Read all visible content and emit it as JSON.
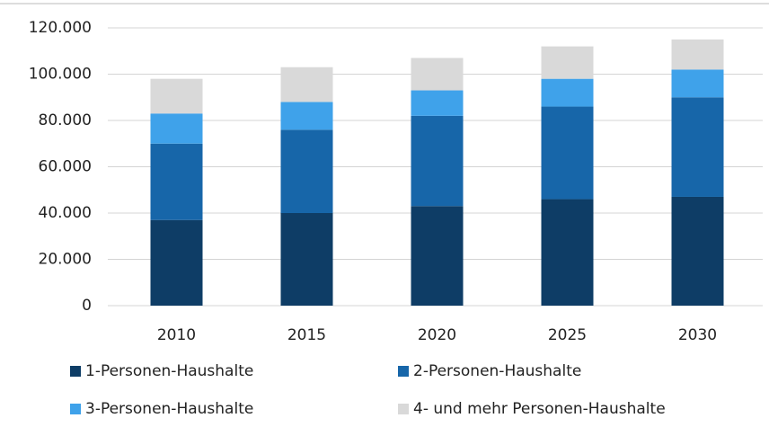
{
  "chart_data": {
    "type": "stacked_bar",
    "categories": [
      "2010",
      "2015",
      "2020",
      "2025",
      "2030"
    ],
    "series": [
      {
        "name": "1-Personen-Haushalte",
        "color": "#0e3d66",
        "values": [
          37000,
          40000,
          43000,
          46000,
          47000
        ]
      },
      {
        "name": "2-Personen-Haushalte",
        "color": "#1766a9",
        "values": [
          33000,
          36000,
          39000,
          40000,
          43000
        ]
      },
      {
        "name": "3-Personen-Haushalte",
        "color": "#3fa2ea",
        "values": [
          13000,
          12000,
          11000,
          12000,
          12000
        ]
      },
      {
        "name": "4- und mehr Personen-Haushalte",
        "color": "#d9d9d9",
        "values": [
          15000,
          15000,
          14000,
          14000,
          13000
        ]
      }
    ],
    "ylim": [
      0,
      120000
    ],
    "yticks": [
      0,
      {
        "value": 20000,
        "label": "20.000"
      },
      {
        "value": 40000,
        "label": "40.000"
      },
      {
        "value": 60000,
        "label": "60.000"
      },
      {
        "value": 80000,
        "label": "80.000"
      },
      {
        "value": 100000,
        "label": "100.000"
      },
      {
        "value": 120000,
        "label": "120.000"
      }
    ],
    "grid": true
  }
}
